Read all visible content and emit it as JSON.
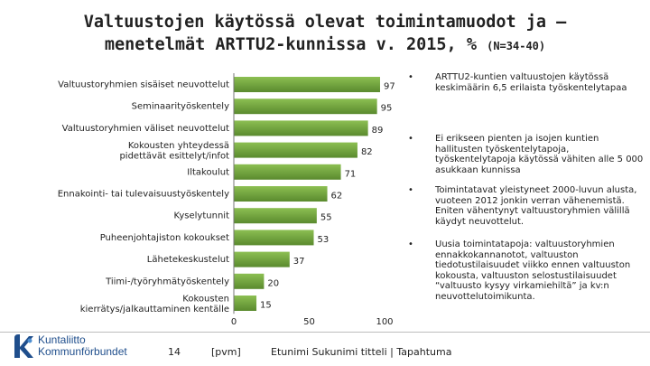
{
  "title": {
    "line1": "Valtuustojen käytössä olevat toimintamuodot ja –",
    "line2": "menetelmät ARTTU2-kunnissa v. 2015, %",
    "n_note": "(N=34-40)"
  },
  "chart_data": {
    "type": "bar",
    "orientation": "horizontal",
    "title": "Valtuustojen käytössä olevat toimintamuodot ja –menetelmät ARTTU2-kunnissa v. 2015, %",
    "categories": [
      "Valtuustoryhmien sisäiset neuvottelut",
      "Seminaarityöskentely",
      "Valtuustoryhmien väliset neuvottelut",
      "Kokousten yhteydessä pidettävät esittelyt/infot",
      "Iltakoulut",
      "Ennakointi- tai tulevaisuustyöskentely",
      "Kyselytunnit",
      "Puheenjohtajiston kokoukset",
      "Lähetekeskustelut",
      "Tiimi-/työryhmätyöskentely",
      "Kokousten kierrätys/jalkauttaminen kentälle"
    ],
    "values": [
      97,
      95,
      89,
      82,
      71,
      62,
      55,
      53,
      37,
      20,
      15
    ],
    "value_labels": [
      "97",
      "95",
      "89",
      "82",
      "71",
      "62",
      "55",
      "53",
      "37",
      "20",
      "15"
    ],
    "xlim": [
      0,
      100
    ],
    "xticks": [
      "0",
      "50",
      "100"
    ],
    "xlabel": "",
    "ylabel": "",
    "grid": false,
    "bar_color": "#5a8a2e",
    "bar_color_light": "#8cbf52"
  },
  "bullets": [
    "ARTTU2-kuntien valtuustojen käytössä keskimäärin 6,5 erilaista työskentelytapaa",
    "Ei erikseen pienten ja isojen kuntien hallitusten työskentelytapoja, työskentelytapoja käytössä vähiten alle 5 000 asukkaan kunnissa",
    "Toimintatavat yleistyneet 2000-luvun alusta, vuoteen 2012 jonkin verran vähenemistä. Eniten vähentynyt valtuustoryhmien välillä käydyt neuvottelut.",
    "Uusia toimintatapoja: valtuustoryhmien ennakkokannanotot, valtuuston tiedotustilaisuudet viikko ennen valtuuston kokousta, valtuuston selostustilaisuudet “valtuusto kysyy virkamiehiltä” ja kv:n neuvottelutoimikunta."
  ],
  "footer": {
    "brand_line1": "Kuntaliitto",
    "brand_line2": "Kommunförbundet",
    "page_number": "14",
    "date": "[pvm]",
    "author": "Etunimi Sukunimi titteli | Tapahtuma",
    "logo_icon": "kuntaliitto-logo-icon",
    "brand_color": "#1f4e8c"
  }
}
